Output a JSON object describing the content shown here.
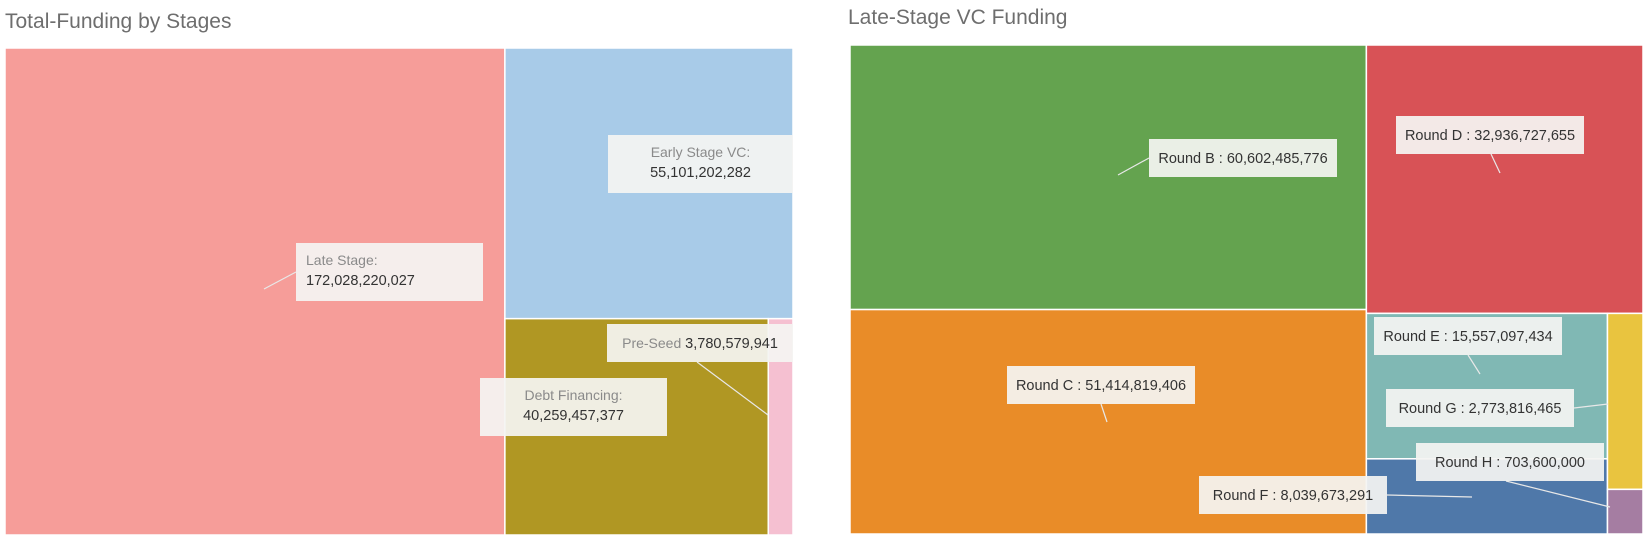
{
  "chart_data": [
    {
      "type": "treemap",
      "title": "Total-Funding by Stages",
      "items": [
        {
          "name": "Late Stage",
          "value": 172028220027,
          "label": "172,028,220,027",
          "color": "#f69d99"
        },
        {
          "name": "Early Stage VC",
          "value": 55101202282,
          "label": "55,101,202,282",
          "color": "#a8cbe8"
        },
        {
          "name": "Debt Financing",
          "value": 40259457377,
          "label": "40,259,457,377",
          "color": "#b09723"
        },
        {
          "name": "Pre-Seed",
          "value": 3780579941,
          "label": "3,780,579,941",
          "color": "#f5c0d1"
        }
      ]
    },
    {
      "type": "treemap",
      "title": "Late-Stage VC Funding",
      "items": [
        {
          "name": "Round B",
          "value": 60602485776,
          "label": "60,602,485,776",
          "color": "#64a34f"
        },
        {
          "name": "Round C",
          "value": 51414819406,
          "label": "51,414,819,406",
          "color": "#e98c28"
        },
        {
          "name": "Round D",
          "value": 32936727655,
          "label": "32,936,727,655",
          "color": "#d85256"
        },
        {
          "name": "Round E",
          "value": 15557097434,
          "label": "15,557,097,434",
          "color": "#80b8b4"
        },
        {
          "name": "Round F",
          "value": 8039673291,
          "label": "8,039,673,291",
          "color": "#4f78a9"
        },
        {
          "name": "Round G",
          "value": 2773816465,
          "label": "2,773,816,465",
          "color": "#e9c43f"
        },
        {
          "name": "Round H",
          "value": 703600000,
          "label": "703,600,000",
          "color": "#a57da2"
        }
      ]
    }
  ]
}
